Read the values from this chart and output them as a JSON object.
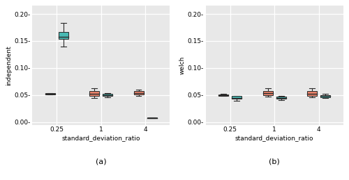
{
  "fig_bg": "#FFFFFF",
  "plot_bg": "#E8E8E8",
  "grid_color": "#FFFFFF",
  "red_color": "#E8826A",
  "teal_color": "#48B9B3",
  "median_color": "#2A2A2A",
  "whisker_color": "#2A2A2A",
  "box_edge_color": "#2A2A2A",
  "left_panel": {
    "ylabel": "independent",
    "xlabel": "standard_deviation_ratio",
    "subtitle": "(a)",
    "ylim": [
      -0.005,
      0.215
    ],
    "yticks": [
      0.0,
      0.05,
      0.1,
      0.15,
      0.2
    ],
    "ytick_labels": [
      "0.00-",
      "0.05-",
      "0.10-",
      "0.15-",
      "0.20-"
    ],
    "xtick_labels": [
      "0.25",
      "1",
      "4"
    ],
    "boxes": [
      {
        "x": 0,
        "color": "red",
        "whislo": 0.051,
        "q1": 0.051,
        "med": 0.052,
        "q3": 0.053,
        "whishi": 0.053
      },
      {
        "x": 0,
        "color": "teal",
        "whislo": 0.14,
        "q1": 0.154,
        "med": 0.157,
        "q3": 0.167,
        "whishi": 0.183
      },
      {
        "x": 1,
        "color": "red",
        "whislo": 0.044,
        "q1": 0.048,
        "med": 0.052,
        "q3": 0.057,
        "whishi": 0.063
      },
      {
        "x": 1,
        "color": "teal",
        "whislo": 0.046,
        "q1": 0.048,
        "med": 0.05,
        "q3": 0.052,
        "whishi": 0.053
      },
      {
        "x": 2,
        "color": "red",
        "whislo": 0.049,
        "q1": 0.051,
        "med": 0.053,
        "q3": 0.057,
        "whishi": 0.06
      },
      {
        "x": 2,
        "color": "teal",
        "whislo": 0.007,
        "q1": 0.007,
        "med": 0.008,
        "q3": 0.009,
        "whishi": 0.009
      }
    ]
  },
  "right_panel": {
    "ylabel": "welch",
    "xlabel": "standard_deviation_ratio",
    "subtitle": "(b)",
    "ylim": [
      -0.005,
      0.215
    ],
    "yticks": [
      0.0,
      0.05,
      0.1,
      0.15,
      0.2
    ],
    "ytick_labels": [
      "0.00-",
      "0.05-",
      "0.10-",
      "0.15-",
      "0.20-"
    ],
    "xtick_labels": [
      "0.25",
      "1",
      "4"
    ],
    "boxes": [
      {
        "x": 0,
        "color": "red",
        "whislo": 0.048,
        "q1": 0.049,
        "med": 0.05,
        "q3": 0.051,
        "whishi": 0.052
      },
      {
        "x": 0,
        "color": "teal",
        "whislo": 0.04,
        "q1": 0.043,
        "med": 0.045,
        "q3": 0.048,
        "whishi": 0.049
      },
      {
        "x": 1,
        "color": "red",
        "whislo": 0.047,
        "q1": 0.05,
        "med": 0.053,
        "q3": 0.057,
        "whishi": 0.063
      },
      {
        "x": 1,
        "color": "teal",
        "whislo": 0.041,
        "q1": 0.043,
        "med": 0.045,
        "q3": 0.047,
        "whishi": 0.048
      },
      {
        "x": 2,
        "color": "red",
        "whislo": 0.046,
        "q1": 0.049,
        "med": 0.052,
        "q3": 0.057,
        "whishi": 0.063
      },
      {
        "x": 2,
        "color": "teal",
        "whislo": 0.044,
        "q1": 0.046,
        "med": 0.048,
        "q3": 0.05,
        "whishi": 0.052
      }
    ]
  }
}
